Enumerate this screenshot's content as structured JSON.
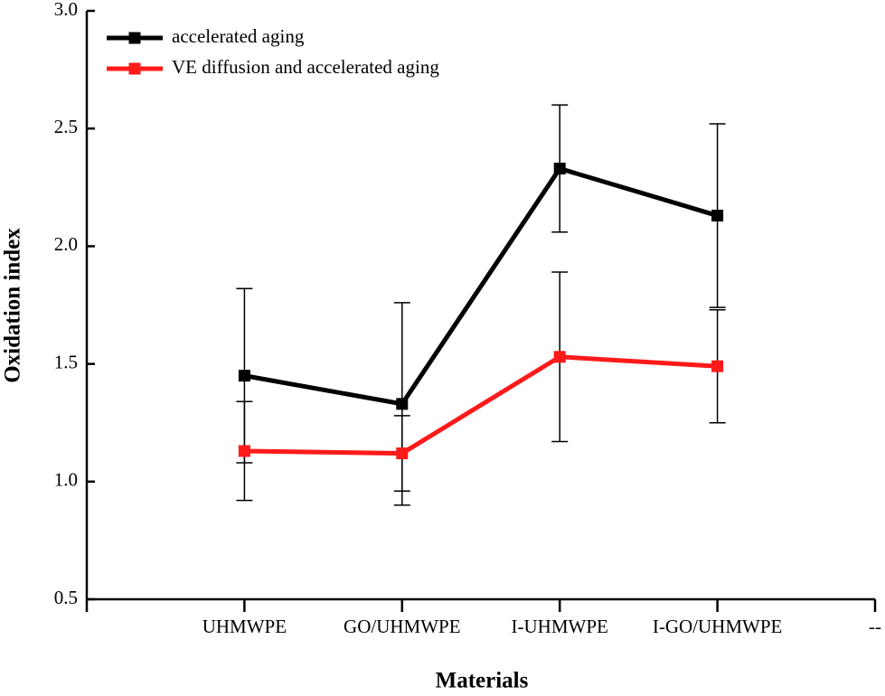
{
  "chart_data": {
    "type": "line",
    "x_label": "Materials",
    "y_label": "Oxidation index",
    "categories": [
      "UHMWPE",
      "GO/UHMWPE",
      "I-UHMWPE",
      "I-GO/UHMWPE",
      "--"
    ],
    "series": [
      {
        "name": "accelerated aging",
        "color": "#000000",
        "values": [
          1.45,
          1.33,
          2.33,
          2.13,
          null
        ],
        "errors": [
          0.37,
          0.43,
          0.27,
          0.39,
          null
        ]
      },
      {
        "name": "VE diffusion and accelerated aging",
        "color": "#ff1a1a",
        "values": [
          1.13,
          1.12,
          1.53,
          1.49,
          null
        ],
        "errors": [
          0.21,
          0.16,
          0.36,
          0.24,
          null
        ]
      }
    ],
    "ylim": [
      0.5,
      3.0
    ],
    "yticks": [
      {
        "value": 0.5,
        "label": "0.5"
      },
      {
        "value": 1.0,
        "label": "1.0"
      },
      {
        "value": 1.5,
        "label": "1.5"
      },
      {
        "value": 2.0,
        "label": "2.0"
      },
      {
        "value": 2.5,
        "label": "2.5"
      },
      {
        "value": 3.0,
        "label": "3.0"
      }
    ],
    "legend": "upper left"
  }
}
